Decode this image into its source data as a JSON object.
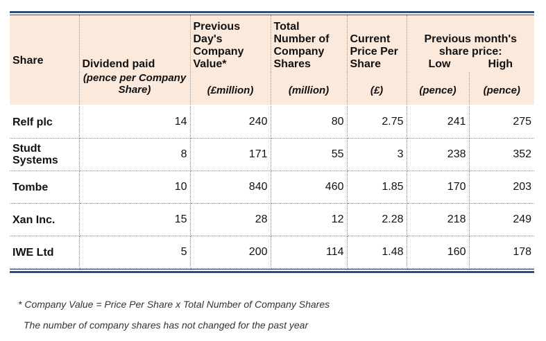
{
  "header": {
    "share": "Share",
    "dividend": "Dividend paid",
    "dividend_unit": "(pence per Company Share)",
    "prev_value": "Previous Day's Company Value*",
    "prev_value_unit": "(£million)",
    "total_shares": "Total Number of Company Shares",
    "total_shares_unit": "(million)",
    "current_price": "Current Price Per Share",
    "current_price_unit": "(£)",
    "prev_month": "Previous month's share price:",
    "low": "Low",
    "high": "High",
    "low_unit": "(pence)",
    "high_unit": "(pence)"
  },
  "rows": [
    {
      "share": "Relf plc",
      "dividend": "14",
      "value": "240",
      "shares": "80",
      "price": "2.75",
      "low": "241",
      "high": "275"
    },
    {
      "share": "Studt Systems",
      "dividend": "8",
      "value": "171",
      "shares": "55",
      "price": "3",
      "low": "238",
      "high": "352"
    },
    {
      "share": "Tombe",
      "dividend": "10",
      "value": "840",
      "shares": "460",
      "price": "1.85",
      "low": "170",
      "high": "203"
    },
    {
      "share": "Xan Inc.",
      "dividend": "15",
      "value": "28",
      "shares": "12",
      "price": "2.28",
      "low": "218",
      "high": "249"
    },
    {
      "share": "IWE Ltd",
      "dividend": "5",
      "value": "200",
      "shares": "114",
      "price": "1.48",
      "low": "160",
      "high": "178"
    }
  ],
  "footnotes": {
    "line1": "* Company Value = Price Per Share x Total Number of Company Shares",
    "line2": "The number of company shares has not changed for the past year"
  }
}
